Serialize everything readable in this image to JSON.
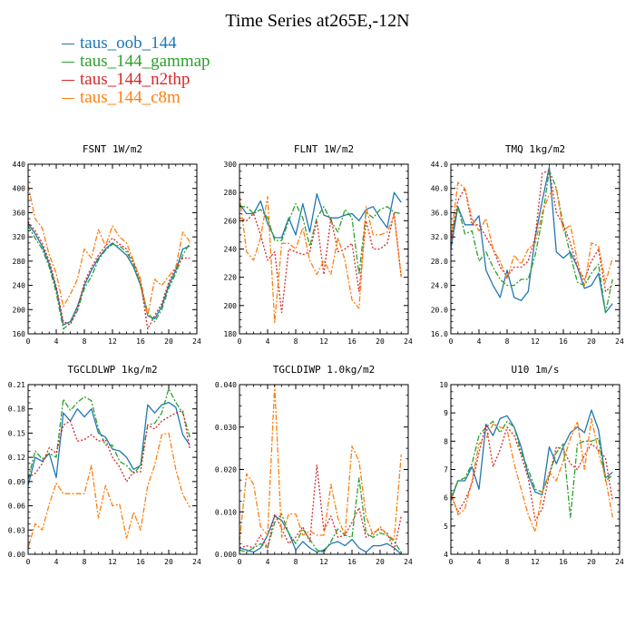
{
  "title": "Time Series at265E,-12N",
  "legend": [
    {
      "label": "taus_oob_144",
      "color": "#1f77b4"
    },
    {
      "label": "taus_144_gammap",
      "color": "#2ca02c"
    },
    {
      "label": "taus_144_n2thp",
      "color": "#d62728"
    },
    {
      "label": "taus_144_c8m",
      "color": "#ff7f0e"
    }
  ],
  "chart_data": [
    {
      "type": "line",
      "title": "FSNT   1W/m2",
      "xlim": [
        0,
        24
      ],
      "ylim": [
        160,
        440
      ],
      "xticks": [
        "0",
        "4",
        "8",
        "12",
        "16",
        "20",
        "24"
      ],
      "yticks": [
        "160",
        "200",
        "240",
        "280",
        "320",
        "360",
        "400",
        "440"
      ],
      "x": [
        0,
        1,
        2,
        3,
        4,
        5,
        6,
        7,
        8,
        9,
        10,
        11,
        12,
        13,
        14,
        15,
        16,
        17,
        18,
        19,
        20,
        21,
        22,
        23
      ],
      "series": [
        {
          "style": "solid",
          "color": "#1f77b4",
          "values": [
            342,
            325,
            305,
            275,
            235,
            175,
            180,
            205,
            240,
            265,
            285,
            300,
            310,
            300,
            290,
            270,
            240,
            190,
            185,
            205,
            240,
            265,
            300,
            305
          ]
        },
        {
          "style": "dashdot",
          "color": "#2ca02c",
          "values": [
            338,
            318,
            300,
            270,
            228,
            168,
            178,
            198,
            235,
            255,
            282,
            298,
            308,
            305,
            295,
            275,
            240,
            195,
            180,
            200,
            235,
            260,
            290,
            310
          ]
        },
        {
          "style": "dotted",
          "color": "#d62728",
          "values": [
            345,
            330,
            310,
            280,
            238,
            180,
            175,
            200,
            245,
            270,
            290,
            305,
            318,
            308,
            300,
            278,
            245,
            168,
            190,
            210,
            245,
            270,
            285,
            285
          ]
        },
        {
          "style": "dashdot",
          "color": "#ff7f0e",
          "values": [
            405,
            350,
            335,
            290,
            260,
            205,
            225,
            250,
            300,
            285,
            332,
            305,
            338,
            320,
            310,
            280,
            250,
            190,
            250,
            240,
            255,
            270,
            328,
            312
          ]
        }
      ]
    },
    {
      "type": "line",
      "title": "FLNT   1W/m2",
      "xlim": [
        0,
        24
      ],
      "ylim": [
        180,
        300
      ],
      "xticks": [
        "0",
        "4",
        "8",
        "12",
        "16",
        "20",
        "24"
      ],
      "yticks": [
        "180",
        "200",
        "220",
        "240",
        "260",
        "280",
        "300"
      ],
      "x": [
        0,
        1,
        2,
        3,
        4,
        5,
        6,
        7,
        8,
        9,
        10,
        11,
        12,
        13,
        14,
        15,
        16,
        17,
        18,
        19,
        20,
        21,
        22,
        23
      ],
      "series": [
        {
          "style": "solid",
          "color": "#1f77b4",
          "values": [
            272,
            265,
            265,
            274,
            258,
            248,
            248,
            262,
            250,
            272,
            252,
            279,
            264,
            262,
            262,
            264,
            265,
            260,
            268,
            270,
            262,
            255,
            280,
            273
          ]
        },
        {
          "style": "dashdot",
          "color": "#2ca02c",
          "values": [
            270,
            270,
            265,
            268,
            262,
            246,
            246,
            260,
            272,
            262,
            242,
            262,
            270,
            260,
            252,
            268,
            262,
            222,
            266,
            262,
            268,
            270,
            266,
            265
          ]
        },
        {
          "style": "dotted",
          "color": "#d62728",
          "values": [
            262,
            260,
            265,
            250,
            232,
            238,
            195,
            240,
            238,
            236,
            238,
            260,
            222,
            262,
            238,
            240,
            244,
            210,
            260,
            240,
            240,
            244,
            266,
            220
          ]
        },
        {
          "style": "dashdot",
          "color": "#ff7f0e",
          "values": [
            278,
            238,
            232,
            248,
            277,
            188,
            244,
            244,
            240,
            255,
            232,
            222,
            232,
            222,
            248,
            232,
            204,
            198,
            270,
            250,
            250,
            252,
            264,
            220
          ]
        }
      ]
    },
    {
      "type": "line",
      "title": "TMQ   1kg/m2",
      "xlim": [
        0,
        24
      ],
      "ylim": [
        16,
        44
      ],
      "xticks": [
        "0",
        "4",
        "8",
        "12",
        "16",
        "20",
        "24"
      ],
      "yticks": [
        "16.0",
        "20.0",
        "24.0",
        "28.0",
        "32.0",
        "36.0",
        "40.0",
        "44.0"
      ],
      "x": [
        0,
        1,
        2,
        3,
        4,
        5,
        6,
        7,
        8,
        9,
        10,
        11,
        12,
        13,
        14,
        15,
        16,
        17,
        18,
        19,
        20,
        21,
        22,
        23
      ],
      "series": [
        {
          "style": "solid",
          "color": "#1f77b4",
          "values": [
            30,
            37,
            34,
            34,
            35.5,
            26.5,
            24,
            22,
            26.5,
            22,
            21.5,
            23,
            32,
            38,
            43.5,
            29.5,
            28.5,
            29.5,
            27,
            23.5,
            24,
            26,
            19.5,
            21
          ]
        },
        {
          "style": "dashdot",
          "color": "#2ca02c",
          "values": [
            32,
            37,
            32.5,
            33,
            28,
            29.5,
            27,
            25,
            24,
            24,
            25,
            25,
            29,
            35,
            43,
            40,
            34,
            29,
            24.5,
            24,
            26,
            27.5,
            19.5,
            25
          ]
        },
        {
          "style": "dotted",
          "color": "#d62728",
          "values": [
            31,
            38,
            40,
            34,
            34,
            32,
            30,
            27,
            25.5,
            27,
            27,
            28,
            32,
            42.5,
            43,
            36,
            34,
            31,
            27,
            25,
            28,
            30,
            23,
            24
          ]
        },
        {
          "style": "dashdot",
          "color": "#ff7f0e",
          "values": [
            31.5,
            41,
            40,
            35,
            33,
            35,
            30,
            28,
            25,
            29,
            27.5,
            30,
            31,
            36,
            39,
            40,
            33,
            34,
            28,
            24,
            31,
            30.5,
            24.5,
            28.5
          ]
        }
      ]
    },
    {
      "type": "line",
      "title": "TGCLDLWP   1kg/m2",
      "xlim": [
        0,
        24
      ],
      "ylim": [
        0,
        0.21
      ],
      "xticks": [
        "0",
        "4",
        "8",
        "12",
        "16",
        "20",
        "24"
      ],
      "yticks": [
        "0.00",
        "0.03",
        "0.06",
        "0.09",
        "0.12",
        "0.15",
        "0.18",
        "0.21"
      ],
      "x": [
        0,
        1,
        2,
        3,
        4,
        5,
        6,
        7,
        8,
        9,
        10,
        11,
        12,
        13,
        14,
        15,
        16,
        17,
        18,
        19,
        20,
        21,
        22,
        23
      ],
      "series": [
        {
          "style": "solid",
          "color": "#1f77b4",
          "values": [
            0.085,
            0.12,
            0.115,
            0.125,
            0.095,
            0.175,
            0.165,
            0.18,
            0.17,
            0.18,
            0.15,
            0.145,
            0.13,
            0.128,
            0.12,
            0.105,
            0.11,
            0.185,
            0.175,
            0.185,
            0.188,
            0.182,
            0.148,
            0.135
          ]
        },
        {
          "style": "dashdot",
          "color": "#2ca02c",
          "values": [
            0.093,
            0.128,
            0.118,
            0.125,
            0.12,
            0.192,
            0.178,
            0.188,
            0.195,
            0.19,
            0.155,
            0.135,
            0.135,
            0.115,
            0.11,
            0.1,
            0.11,
            0.16,
            0.162,
            0.175,
            0.205,
            0.188,
            0.175,
            0.145
          ]
        },
        {
          "style": "dotted",
          "color": "#d62728",
          "values": [
            0.095,
            0.1,
            0.112,
            0.132,
            0.125,
            0.16,
            0.165,
            0.14,
            0.142,
            0.148,
            0.14,
            0.142,
            0.12,
            0.108,
            0.09,
            0.102,
            0.102,
            0.16,
            0.155,
            0.165,
            0.17,
            0.175,
            0.178,
            0.13
          ]
        },
        {
          "style": "dashdot",
          "color": "#ff7f0e",
          "values": [
            0.008,
            0.038,
            0.03,
            0.062,
            0.088,
            0.075,
            0.075,
            0.075,
            0.075,
            0.11,
            0.045,
            0.085,
            0.06,
            0.062,
            0.02,
            0.052,
            0.03,
            0.085,
            0.11,
            0.148,
            0.15,
            0.105,
            0.074,
            0.058
          ]
        }
      ]
    },
    {
      "type": "line",
      "title": "TGCLDIWP   1.0kg/m2",
      "xlim": [
        0,
        24
      ],
      "ylim": [
        0,
        0.04
      ],
      "xticks": [
        "0",
        "4",
        "8",
        "12",
        "16",
        "20",
        "24"
      ],
      "yticks": [
        "0.000",
        "0.010",
        "0.020",
        "0.030",
        "0.040"
      ],
      "x": [
        0,
        1,
        2,
        3,
        4,
        5,
        6,
        7,
        8,
        9,
        10,
        11,
        12,
        13,
        14,
        15,
        16,
        17,
        18,
        19,
        20,
        21,
        22,
        23
      ],
      "series": [
        {
          "style": "solid",
          "color": "#1f77b4",
          "values": [
            0.0015,
            0.001,
            0.0005,
            0.0015,
            0.0045,
            0.009,
            0.008,
            0.005,
            0.001,
            0.003,
            0.0015,
            0.0005,
            0.001,
            0.0025,
            0.003,
            0.002,
            0.0035,
            0.0015,
            0.0005,
            0.002,
            0.002,
            0.0025,
            0.0015,
            0
          ]
        },
        {
          "style": "dashdot",
          "color": "#2ca02c",
          "values": [
            0.001,
            0.0005,
            0.0015,
            0.0025,
            0.0015,
            0.0075,
            0.0095,
            0.005,
            0.0025,
            0.006,
            0.0035,
            0.001,
            0.0005,
            0.003,
            0.006,
            0.0045,
            0.004,
            0.018,
            0.005,
            0.004,
            0.005,
            0.0045,
            0.003,
            0.0005
          ]
        },
        {
          "style": "dotted",
          "color": "#d62728",
          "values": [
            0.0015,
            0.002,
            0.0015,
            0.0045,
            0.0015,
            0.0095,
            0.006,
            0.0025,
            0.004,
            0.0065,
            0.003,
            0.021,
            0.0055,
            0.009,
            0.004,
            0.0045,
            0.0075,
            0.011,
            0.004,
            0.005,
            0.006,
            0.005,
            0.001,
            0.009
          ]
        },
        {
          "style": "dashdot",
          "color": "#ff7f0e",
          "values": [
            0.003,
            0.019,
            0.0165,
            0.0065,
            0.0045,
            0.04,
            0.004,
            0.0095,
            0.0095,
            0.0045,
            0.0055,
            0.0045,
            0.0045,
            0.0165,
            0.0085,
            0.0045,
            0.0255,
            0.022,
            0.009,
            0.0045,
            0.0065,
            0.0045,
            0.0035,
            0.0235
          ]
        }
      ]
    },
    {
      "type": "line",
      "title": "U10   1m/s",
      "xlim": [
        0,
        24
      ],
      "ylim": [
        4,
        10
      ],
      "xticks": [
        "0",
        "4",
        "8",
        "12",
        "16",
        "20",
        "24"
      ],
      "yticks": [
        "4",
        "5",
        "6",
        "7",
        "8",
        "9",
        "10"
      ],
      "x": [
        0,
        1,
        2,
        3,
        4,
        5,
        6,
        7,
        8,
        9,
        10,
        11,
        12,
        13,
        14,
        15,
        16,
        17,
        18,
        19,
        20,
        21,
        22,
        23
      ],
      "series": [
        {
          "style": "solid",
          "color": "#1f77b4",
          "values": [
            5.9,
            6.6,
            6.6,
            7.1,
            6.3,
            8.6,
            8.2,
            8.8,
            8.9,
            8.5,
            7.8,
            6.8,
            6.2,
            6.1,
            7.8,
            7.2,
            7.8,
            8.3,
            8.5,
            8.3,
            9.1,
            8.4,
            6.7,
            6.9
          ]
        },
        {
          "style": "dashdot",
          "color": "#2ca02c",
          "values": [
            6.0,
            6.6,
            6.7,
            7.2,
            8.2,
            8.5,
            8.7,
            8.3,
            8.7,
            8.5,
            7.6,
            7.0,
            6.3,
            6.2,
            6.8,
            7.6,
            7.9,
            5.3,
            7.9,
            8.0,
            8.0,
            8.1,
            6.6,
            6.8
          ]
        },
        {
          "style": "dotted",
          "color": "#d62728",
          "values": [
            6.1,
            5.5,
            5.9,
            6.5,
            7.6,
            8.6,
            7.1,
            7.7,
            8.5,
            8.2,
            7.5,
            6.7,
            5.2,
            5.6,
            6.8,
            7.8,
            7.7,
            7.2,
            7.0,
            7.5,
            7.9,
            7.7,
            7.4,
            5.9
          ]
        },
        {
          "style": "dashdot",
          "color": "#ff7f0e",
          "values": [
            6.2,
            5.4,
            5.6,
            6.6,
            7.9,
            8.1,
            8.6,
            8.5,
            8.4,
            7.2,
            6.3,
            5.4,
            4.8,
            6.2,
            6.9,
            6.6,
            7.3,
            8.1,
            8.7,
            7.0,
            8.8,
            7.6,
            6.7,
            5.3
          ]
        }
      ]
    }
  ]
}
